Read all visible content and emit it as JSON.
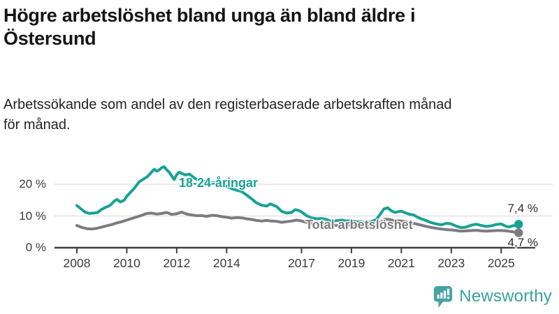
{
  "header": {
    "title_line1": "Högre arbetslöshet bland unga än bland äldre i",
    "title_line2": "Östersund",
    "subtitle_line1": "Arbetssökande som andel av den registerbaserade arbetskraften månad",
    "subtitle_line2": "för månad."
  },
  "chart_data": {
    "type": "line",
    "unit": "%",
    "grid": "horizontal",
    "legend_position": "inline-labels",
    "x_axis": {
      "ticks": [
        "2008",
        "2010",
        "2012",
        "2014",
        "2017",
        "2019",
        "2021",
        "2023",
        "2025"
      ],
      "tick_years": [
        2008,
        2010,
        2012,
        2014,
        2017,
        2019,
        2021,
        2023,
        2025
      ],
      "range": [
        2007.1,
        2026.4
      ]
    },
    "y_axis": {
      "ticks": [
        "0 %",
        "10 %",
        "20 %"
      ],
      "tick_values": [
        0,
        10,
        20
      ],
      "range": [
        0,
        27
      ]
    },
    "series": [
      {
        "name": "18-24-åringar",
        "color": "#17a295",
        "end_label": "7,4 %",
        "end_value": 7.4,
        "points": [
          [
            2008.0,
            13.3
          ],
          [
            2008.17,
            12.2
          ],
          [
            2008.33,
            11.2
          ],
          [
            2008.5,
            10.8
          ],
          [
            2008.67,
            10.9
          ],
          [
            2008.83,
            11.1
          ],
          [
            2009.0,
            12.1
          ],
          [
            2009.17,
            12.8
          ],
          [
            2009.33,
            13.3
          ],
          [
            2009.5,
            14.7
          ],
          [
            2009.6,
            15.2
          ],
          [
            2009.75,
            14.4
          ],
          [
            2009.9,
            15.0
          ],
          [
            2010.0,
            16.2
          ],
          [
            2010.17,
            17.6
          ],
          [
            2010.33,
            19.0
          ],
          [
            2010.5,
            20.8
          ],
          [
            2010.67,
            21.6
          ],
          [
            2010.83,
            22.4
          ],
          [
            2011.0,
            23.9
          ],
          [
            2011.1,
            24.7
          ],
          [
            2011.2,
            24.1
          ],
          [
            2011.3,
            24.5
          ],
          [
            2011.4,
            25.2
          ],
          [
            2011.5,
            25.5
          ],
          [
            2011.6,
            24.5
          ],
          [
            2011.7,
            23.8
          ],
          [
            2011.8,
            22.6
          ],
          [
            2011.9,
            21.5
          ],
          [
            2012.0,
            23.0
          ],
          [
            2012.1,
            23.8
          ],
          [
            2012.2,
            23.4
          ],
          [
            2012.35,
            22.9
          ],
          [
            2012.5,
            23.2
          ],
          [
            2012.65,
            22.3
          ],
          [
            2012.8,
            21.5
          ],
          [
            2013.0,
            21.1
          ],
          [
            2013.2,
            20.8
          ],
          [
            2013.4,
            20.4
          ],
          [
            2013.6,
            20.6
          ],
          [
            2013.8,
            19.9
          ],
          [
            2014.0,
            19.4
          ],
          [
            2014.2,
            18.6
          ],
          [
            2014.4,
            18.1
          ],
          [
            2014.6,
            17.7
          ],
          [
            2014.8,
            16.6
          ],
          [
            2015.0,
            15.4
          ],
          [
            2015.2,
            14.1
          ],
          [
            2015.4,
            13.4
          ],
          [
            2015.6,
            13.1
          ],
          [
            2015.75,
            13.8
          ],
          [
            2015.9,
            13.3
          ],
          [
            2016.0,
            13.0
          ],
          [
            2016.2,
            11.5
          ],
          [
            2016.4,
            10.9
          ],
          [
            2016.6,
            11.1
          ],
          [
            2016.75,
            12.0
          ],
          [
            2016.9,
            11.7
          ],
          [
            2017.0,
            11.3
          ],
          [
            2017.2,
            10.1
          ],
          [
            2017.4,
            9.4
          ],
          [
            2017.6,
            9.1
          ],
          [
            2017.8,
            9.2
          ],
          [
            2018.0,
            8.9
          ],
          [
            2018.2,
            8.3
          ],
          [
            2018.4,
            8.5
          ],
          [
            2018.6,
            8.7
          ],
          [
            2018.8,
            8.4
          ],
          [
            2019.0,
            8.5
          ],
          [
            2019.2,
            8.2
          ],
          [
            2019.4,
            8.1
          ],
          [
            2019.6,
            7.9
          ],
          [
            2019.8,
            8.2
          ],
          [
            2020.0,
            8.9
          ],
          [
            2020.15,
            10.5
          ],
          [
            2020.3,
            12.2
          ],
          [
            2020.45,
            12.6
          ],
          [
            2020.6,
            11.6
          ],
          [
            2020.75,
            11.1
          ],
          [
            2020.9,
            11.4
          ],
          [
            2021.0,
            11.5
          ],
          [
            2021.15,
            11.0
          ],
          [
            2021.3,
            10.6
          ],
          [
            2021.5,
            10.3
          ],
          [
            2021.65,
            9.6
          ],
          [
            2021.8,
            9.1
          ],
          [
            2022.0,
            8.5
          ],
          [
            2022.2,
            7.9
          ],
          [
            2022.4,
            7.5
          ],
          [
            2022.6,
            7.2
          ],
          [
            2022.8,
            7.7
          ],
          [
            2023.0,
            7.5
          ],
          [
            2023.2,
            6.8
          ],
          [
            2023.4,
            6.3
          ],
          [
            2023.6,
            6.5
          ],
          [
            2023.8,
            7.1
          ],
          [
            2024.0,
            7.4
          ],
          [
            2024.2,
            7.0
          ],
          [
            2024.4,
            6.7
          ],
          [
            2024.6,
            6.9
          ],
          [
            2024.8,
            7.3
          ],
          [
            2025.0,
            7.5
          ],
          [
            2025.15,
            6.9
          ],
          [
            2025.3,
            6.5
          ],
          [
            2025.45,
            6.9
          ],
          [
            2025.6,
            7.0
          ],
          [
            2025.7,
            7.4
          ]
        ]
      },
      {
        "name": "Total arbetslöshet",
        "color": "#7b7b80",
        "end_label": "4,7 %",
        "end_value": 4.7,
        "points": [
          [
            2008.0,
            7.0
          ],
          [
            2008.2,
            6.4
          ],
          [
            2008.4,
            6.0
          ],
          [
            2008.6,
            5.9
          ],
          [
            2008.8,
            6.1
          ],
          [
            2009.0,
            6.5
          ],
          [
            2009.2,
            6.9
          ],
          [
            2009.4,
            7.3
          ],
          [
            2009.6,
            7.8
          ],
          [
            2009.8,
            8.2
          ],
          [
            2010.0,
            8.7
          ],
          [
            2010.2,
            9.2
          ],
          [
            2010.4,
            9.7
          ],
          [
            2010.6,
            10.2
          ],
          [
            2010.8,
            10.8
          ],
          [
            2011.0,
            10.9
          ],
          [
            2011.2,
            10.6
          ],
          [
            2011.4,
            10.8
          ],
          [
            2011.6,
            11.1
          ],
          [
            2011.8,
            10.5
          ],
          [
            2012.0,
            10.7
          ],
          [
            2012.2,
            11.2
          ],
          [
            2012.4,
            10.6
          ],
          [
            2012.6,
            10.3
          ],
          [
            2012.8,
            10.1
          ],
          [
            2013.0,
            10.1
          ],
          [
            2013.2,
            9.9
          ],
          [
            2013.4,
            10.2
          ],
          [
            2013.6,
            10.1
          ],
          [
            2013.8,
            9.8
          ],
          [
            2014.0,
            9.6
          ],
          [
            2014.2,
            9.3
          ],
          [
            2014.4,
            9.5
          ],
          [
            2014.6,
            9.4
          ],
          [
            2014.8,
            9.1
          ],
          [
            2015.0,
            8.9
          ],
          [
            2015.2,
            8.6
          ],
          [
            2015.4,
            8.4
          ],
          [
            2015.6,
            8.6
          ],
          [
            2015.8,
            8.4
          ],
          [
            2016.0,
            8.3
          ],
          [
            2016.2,
            8.0
          ],
          [
            2016.4,
            8.2
          ],
          [
            2016.6,
            8.4
          ],
          [
            2016.8,
            8.7
          ],
          [
            2017.0,
            8.4
          ],
          [
            2017.2,
            8.0
          ],
          [
            2017.4,
            7.7
          ],
          [
            2017.6,
            7.6
          ],
          [
            2017.8,
            7.8
          ],
          [
            2018.0,
            7.5
          ],
          [
            2018.2,
            7.2
          ],
          [
            2018.4,
            7.0
          ],
          [
            2018.6,
            7.1
          ],
          [
            2018.8,
            7.2
          ],
          [
            2019.0,
            7.1
          ],
          [
            2019.2,
            6.9
          ],
          [
            2019.4,
            6.8
          ],
          [
            2019.6,
            6.7
          ],
          [
            2019.8,
            6.9
          ],
          [
            2020.0,
            7.1
          ],
          [
            2020.2,
            8.2
          ],
          [
            2020.35,
            9.0
          ],
          [
            2020.5,
            8.9
          ],
          [
            2020.7,
            8.6
          ],
          [
            2020.85,
            8.5
          ],
          [
            2021.0,
            8.4
          ],
          [
            2021.2,
            8.1
          ],
          [
            2021.4,
            7.8
          ],
          [
            2021.6,
            7.5
          ],
          [
            2021.8,
            7.1
          ],
          [
            2022.0,
            6.7
          ],
          [
            2022.2,
            6.4
          ],
          [
            2022.4,
            6.1
          ],
          [
            2022.6,
            5.9
          ],
          [
            2022.8,
            5.7
          ],
          [
            2023.0,
            5.6
          ],
          [
            2023.2,
            5.4
          ],
          [
            2023.4,
            5.2
          ],
          [
            2023.6,
            5.3
          ],
          [
            2023.8,
            5.4
          ],
          [
            2024.0,
            5.5
          ],
          [
            2024.2,
            5.3
          ],
          [
            2024.4,
            5.2
          ],
          [
            2024.6,
            5.3
          ],
          [
            2024.8,
            5.4
          ],
          [
            2025.0,
            5.4
          ],
          [
            2025.2,
            5.3
          ],
          [
            2025.4,
            5.1
          ],
          [
            2025.55,
            4.9
          ],
          [
            2025.7,
            4.7
          ]
        ]
      }
    ],
    "colors": {
      "youth_line": "#17a295",
      "total_line": "#7b7b80",
      "gridline": "#e2e2e2",
      "axis": "#3f3f3f",
      "text": "#3b3b3b"
    }
  },
  "footer": {
    "brand": "Newsworthy",
    "brand_color": "#3ba19d",
    "logo_icon": "bar-chart-speech-bubble"
  }
}
